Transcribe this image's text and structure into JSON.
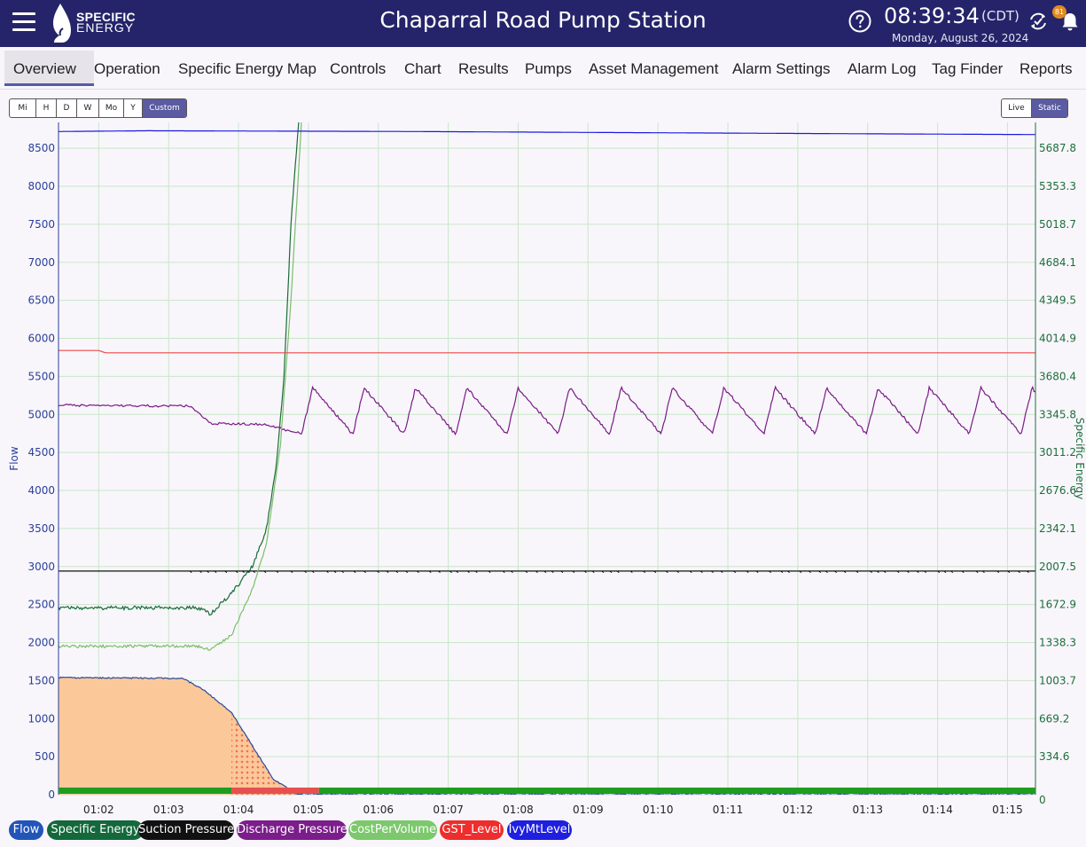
{
  "header": {
    "logo_line1": "SPECIFIC",
    "logo_line2": "ENERGY",
    "station_title": "Chaparral Road Pump Station",
    "clock": "08:39:34",
    "timezone": "(CDT)",
    "date": "Monday, August 26, 2024",
    "notification_count": "81"
  },
  "nav": {
    "tabs": [
      {
        "label": "Overview",
        "active": true
      },
      {
        "label": "Operation"
      },
      {
        "label": "Specific Energy Map"
      },
      {
        "label": "Controls"
      },
      {
        "label": "Chart"
      },
      {
        "label": "Results"
      },
      {
        "label": "Pumps"
      },
      {
        "label": "Asset Management"
      },
      {
        "label": "Alarm Settings"
      },
      {
        "label": "Alarm Log"
      },
      {
        "label": "Tag Finder"
      },
      {
        "label": "Reports"
      }
    ]
  },
  "time_range": {
    "options": [
      "Mi",
      "H",
      "D",
      "W",
      "Mo",
      "Y",
      "Custom"
    ],
    "selected": "Custom"
  },
  "mode": {
    "options": [
      "Live",
      "Static"
    ],
    "selected": "Static"
  },
  "chart_data": {
    "type": "line",
    "x_categories": [
      "01:02",
      "01:03",
      "01:04",
      "01:05",
      "01:06",
      "01:07",
      "01:08",
      "01:09",
      "01:10",
      "01:11",
      "01:12",
      "01:13",
      "01:14",
      "01:15"
    ],
    "x_range": [
      1.425,
      15.4
    ],
    "left_axis": {
      "label": "Flow",
      "ticks": [
        0,
        500,
        1000,
        1500,
        2000,
        2500,
        3000,
        3500,
        4000,
        4500,
        5000,
        5500,
        6000,
        6500,
        7000,
        7500,
        8000,
        8500
      ],
      "range": [
        0,
        8840
      ]
    },
    "right_axis": {
      "label": "Specific Energy",
      "ticks": [
        "0",
        "334.6",
        "669.2",
        "1003.7",
        "1338.3",
        "1672.9",
        "2007.5",
        "2342.1",
        "2676.6",
        "3011.2",
        "3345.8",
        "3680.4",
        "4014.9",
        "4349.5",
        "4684.1",
        "5018.7",
        "5353.3",
        "5687.8"
      ]
    },
    "grid": true,
    "series": [
      {
        "name": "Flow",
        "color": "#2a4a9a",
        "fill": "#fbc89a",
        "points": [
          [
            1.425,
            1540
          ],
          [
            3.2,
            1530
          ],
          [
            3.5,
            1380
          ],
          [
            3.9,
            1080
          ],
          [
            4.2,
            640
          ],
          [
            4.5,
            200
          ],
          [
            4.86,
            0
          ],
          [
            15.4,
            0
          ]
        ]
      },
      {
        "name": "Specific Energy",
        "color": "#1a6b3a",
        "points": [
          [
            1.425,
            2455
          ],
          [
            3.4,
            2460
          ],
          [
            3.6,
            2380
          ],
          [
            3.9,
            2650
          ],
          [
            4.2,
            3000
          ],
          [
            4.4,
            3500
          ],
          [
            4.55,
            4400
          ],
          [
            4.65,
            5500
          ],
          [
            4.75,
            7500
          ],
          [
            4.86,
            8840
          ]
        ]
      },
      {
        "name": "Suction Pressure",
        "color": "#111111",
        "points": [
          [
            1.425,
            2940
          ],
          [
            15.4,
            2940
          ]
        ]
      },
      {
        "name": "Discharge Pressure",
        "color": "#7a1a86",
        "points": [
          [
            1.425,
            5120
          ],
          [
            3.3,
            5110
          ],
          [
            3.6,
            4880
          ],
          [
            4.4,
            4870
          ],
          [
            4.7,
            4790
          ],
          [
            4.9,
            4760
          ],
          [
            15.4,
            5030
          ]
        ]
      },
      {
        "name": "CostPerVolume",
        "color": "#7dbd68",
        "points": [
          [
            1.425,
            1950
          ],
          [
            3.4,
            1955
          ],
          [
            3.6,
            1900
          ],
          [
            3.9,
            2100
          ],
          [
            4.2,
            2700
          ],
          [
            4.4,
            3300
          ],
          [
            4.6,
            4600
          ],
          [
            4.75,
            6500
          ],
          [
            4.9,
            8840
          ]
        ]
      },
      {
        "name": "GST_Level",
        "color": "#f04848",
        "points": [
          [
            1.425,
            5840
          ],
          [
            2.0,
            5840
          ],
          [
            2.1,
            5810
          ],
          [
            15.4,
            5810
          ]
        ]
      },
      {
        "name": "IvyMtLevel",
        "color": "#1a1ae0",
        "points": [
          [
            1.425,
            8720
          ],
          [
            2.7,
            8730
          ],
          [
            6.5,
            8720
          ],
          [
            8.6,
            8710
          ],
          [
            10.8,
            8700
          ],
          [
            13.0,
            8690
          ],
          [
            15.4,
            8680
          ]
        ]
      }
    ],
    "status_bar": [
      {
        "from": 1.425,
        "to": 3.9,
        "color": "#1f9d1f"
      },
      {
        "from": 3.9,
        "to": 5.15,
        "color": "#e85050"
      },
      {
        "from": 5.15,
        "to": 15.4,
        "color": "#1f9d1f"
      }
    ]
  },
  "legend": [
    {
      "label": "Flow",
      "color": "#2255b8"
    },
    {
      "label": "Specific Energy",
      "color": "#14683c"
    },
    {
      "label": "Suction Pressure",
      "color": "#111111"
    },
    {
      "label": "Discharge Pressure",
      "color": "#7b1d8a"
    },
    {
      "label": "CostPerVolume",
      "color": "#7cc86c"
    },
    {
      "label": "GST_Level",
      "color": "#ee2d2d"
    },
    {
      "label": "IvyMtLevel",
      "color": "#1f1fe0"
    }
  ]
}
